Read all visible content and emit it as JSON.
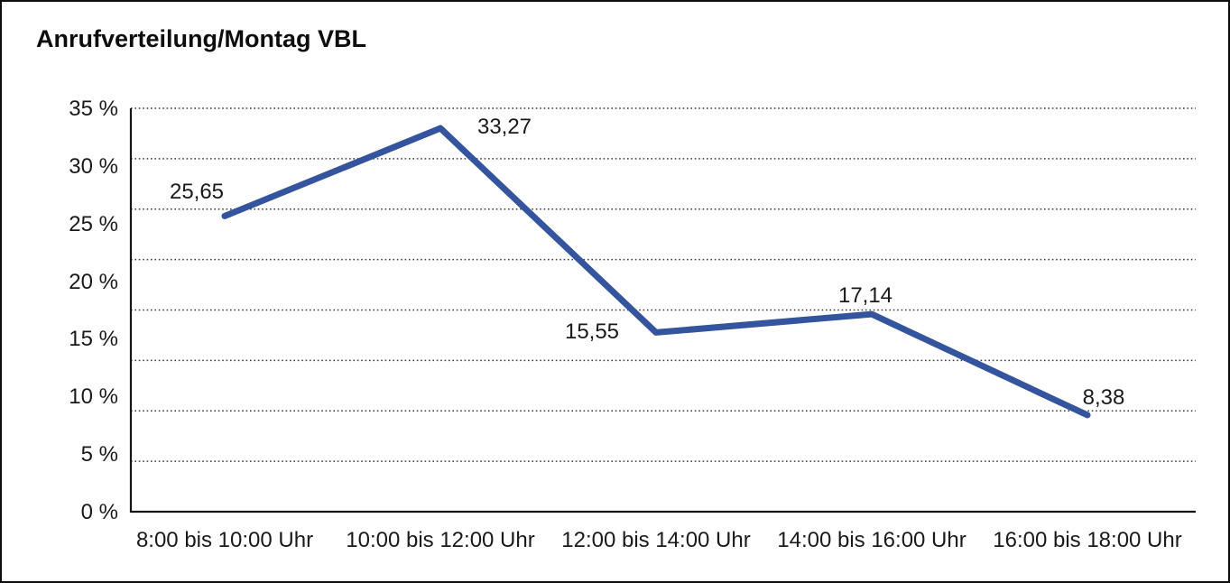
{
  "chart_data": {
    "type": "line",
    "title": "Anrufverteilung/Montag VBL",
    "categories": [
      "8:00 bis 10:00 Uhr",
      "10:00 bis 12:00 Uhr",
      "12:00 bis 14:00 Uhr",
      "14:00 bis 16:00 Uhr",
      "16:00 bis 18:00 Uhr"
    ],
    "values": [
      25.65,
      33.27,
      15.55,
      17.14,
      8.38
    ],
    "point_labels": [
      "25,65",
      "33,27",
      "15,55",
      "17,14",
      "8,38"
    ],
    "ylim": [
      0,
      35
    ],
    "ytick_step": 5,
    "ytick_labels": [
      "0 %",
      "5 %",
      "10 %",
      "15 %",
      "20 %",
      "25 %",
      "30 %",
      "35 %"
    ],
    "grid": "horizontal dotted, 8 equal divisions, solid baseline",
    "legend": "none",
    "line_color": "#34549E",
    "grid_color": "#3c3c3c",
    "axis_color": "#161616",
    "text_color": "#1a1a1a"
  }
}
